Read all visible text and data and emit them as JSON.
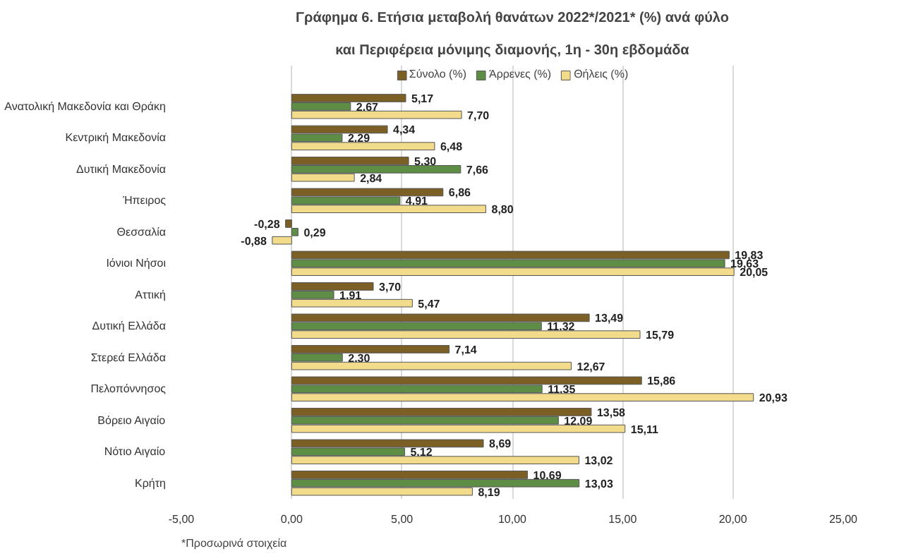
{
  "chart_data": {
    "type": "bar",
    "orientation": "horizontal",
    "title": "Γράφημα 6. Ετήσια μεταβολή θανάτων 2022*/2021* (%) ανά φύλο",
    "subtitle": "και Περιφέρεια μόνιμης διαμονής, 1η - 30η εβδομάδα",
    "categories": [
      "Ανατολική Μακεδονία και Θράκη",
      "Κεντρική Μακεδονία",
      "Δυτική Μακεδονία",
      "Ήπειρος",
      "Θεσσαλία",
      "Ιόνιοι Νήσοι",
      "Αττική",
      "Δυτική Ελλάδα",
      "Στερεά Ελλάδα",
      "Πελοπόννησος",
      "Βόρειο Αιγαίο",
      "Νότιο Αιγαίο",
      "Κρήτη"
    ],
    "series": [
      {
        "name": "Σύνολο (%)",
        "color": "#7b5f24",
        "values": [
          5.17,
          4.34,
          5.3,
          6.86,
          -0.28,
          19.83,
          3.7,
          13.49,
          7.14,
          15.86,
          13.58,
          8.69,
          10.69
        ],
        "value_labels": [
          "5,17",
          "4,34",
          "5,30",
          "6,86",
          "-0,28",
          "19,83",
          "3,70",
          "13,49",
          "7,14",
          "15,86",
          "13,58",
          "8,69",
          "10,69"
        ]
      },
      {
        "name": "Άρρενες (%)",
        "color": "#5e8d45",
        "values": [
          2.67,
          2.29,
          7.66,
          4.91,
          0.29,
          19.63,
          1.91,
          11.32,
          2.3,
          11.35,
          12.09,
          5.12,
          13.03
        ],
        "value_labels": [
          "2,67",
          "2,29",
          "7,66",
          "4,91",
          "0,29",
          "19,63",
          "1,91",
          "11,32",
          "2,30",
          "11,35",
          "12,09",
          "5,12",
          "13,03"
        ]
      },
      {
        "name": "Θήλεις (%)",
        "color": "#f2dc8c",
        "values": [
          7.7,
          6.48,
          2.84,
          8.8,
          -0.88,
          20.05,
          5.47,
          15.79,
          12.67,
          20.93,
          15.11,
          13.02,
          8.19
        ],
        "value_labels": [
          "7,70",
          "6,48",
          "2,84",
          "8,80",
          "-0,88",
          "20,05",
          "5,47",
          "15,79",
          "12,67",
          "20,93",
          "15,11",
          "13,02",
          "8,19"
        ]
      }
    ],
    "xlim": [
      -5,
      25
    ],
    "xticks": [
      {
        "value": -5,
        "label": "-5,00"
      },
      {
        "value": 0,
        "label": "0,00"
      },
      {
        "value": 5,
        "label": "5,00"
      },
      {
        "value": 10,
        "label": "10,00"
      },
      {
        "value": 15,
        "label": "15,00"
      },
      {
        "value": 20,
        "label": "20,00"
      },
      {
        "value": 25,
        "label": "25,00"
      }
    ],
    "grid": "x",
    "legend": "top",
    "annotations": [
      "*Προσωρινά στοιχεία"
    ]
  }
}
